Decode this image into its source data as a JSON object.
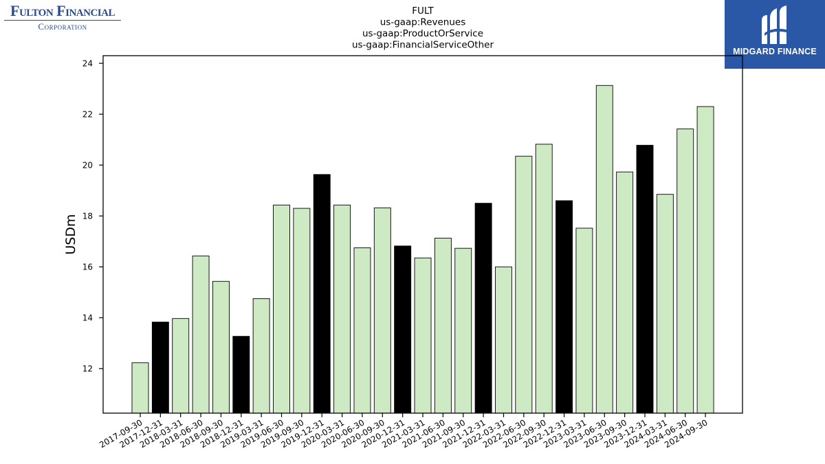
{
  "logos": {
    "left": {
      "line1": "Fulton Financial",
      "line2": "Corporation"
    },
    "right": {
      "brand": "MIDGARD FINANCE",
      "icon": "midgard-logo-icon"
    }
  },
  "colors": {
    "normal_bar": "#cdeac4",
    "q4_bar": "#000000",
    "axis": "#000000",
    "logo_blue": "#2a57a6"
  },
  "chart_data": {
    "type": "bar",
    "title": [
      "FULT",
      "us-gaap:Revenues",
      "us-gaap:ProductOrService",
      "us-gaap:FinancialServiceOther"
    ],
    "xlabel": "",
    "ylabel": "USDm",
    "ylim": [
      10.25,
      24.3
    ],
    "yticks": [
      12,
      14,
      16,
      18,
      20,
      22,
      24
    ],
    "grid": false,
    "categories": [
      "2017-09-30",
      "2017-12-31",
      "2018-03-31",
      "2018-06-30",
      "2018-09-30",
      "2018-12-31",
      "2019-03-31",
      "2019-06-30",
      "2019-09-30",
      "2019-12-31",
      "2020-03-31",
      "2020-06-30",
      "2020-09-30",
      "2020-12-31",
      "2021-03-31",
      "2021-06-30",
      "2021-09-30",
      "2021-12-31",
      "2022-03-31",
      "2022-06-30",
      "2022-09-30",
      "2022-12-31",
      "2023-03-31",
      "2023-06-30",
      "2023-09-30",
      "2023-12-31",
      "2024-03-31",
      "2024-06-30",
      "2024-09-30"
    ],
    "values": [
      12.23,
      13.83,
      13.97,
      16.43,
      15.43,
      13.27,
      14.75,
      18.43,
      18.3,
      19.63,
      18.43,
      16.75,
      18.32,
      16.82,
      16.35,
      17.13,
      16.73,
      18.5,
      16.0,
      20.35,
      20.82,
      18.6,
      17.52,
      23.13,
      19.73,
      20.78,
      18.85,
      21.42,
      22.3
    ],
    "highlight": [
      false,
      true,
      false,
      false,
      false,
      true,
      false,
      false,
      false,
      true,
      false,
      false,
      false,
      true,
      false,
      false,
      false,
      true,
      false,
      false,
      false,
      true,
      false,
      false,
      false,
      true,
      false,
      false,
      false
    ]
  }
}
